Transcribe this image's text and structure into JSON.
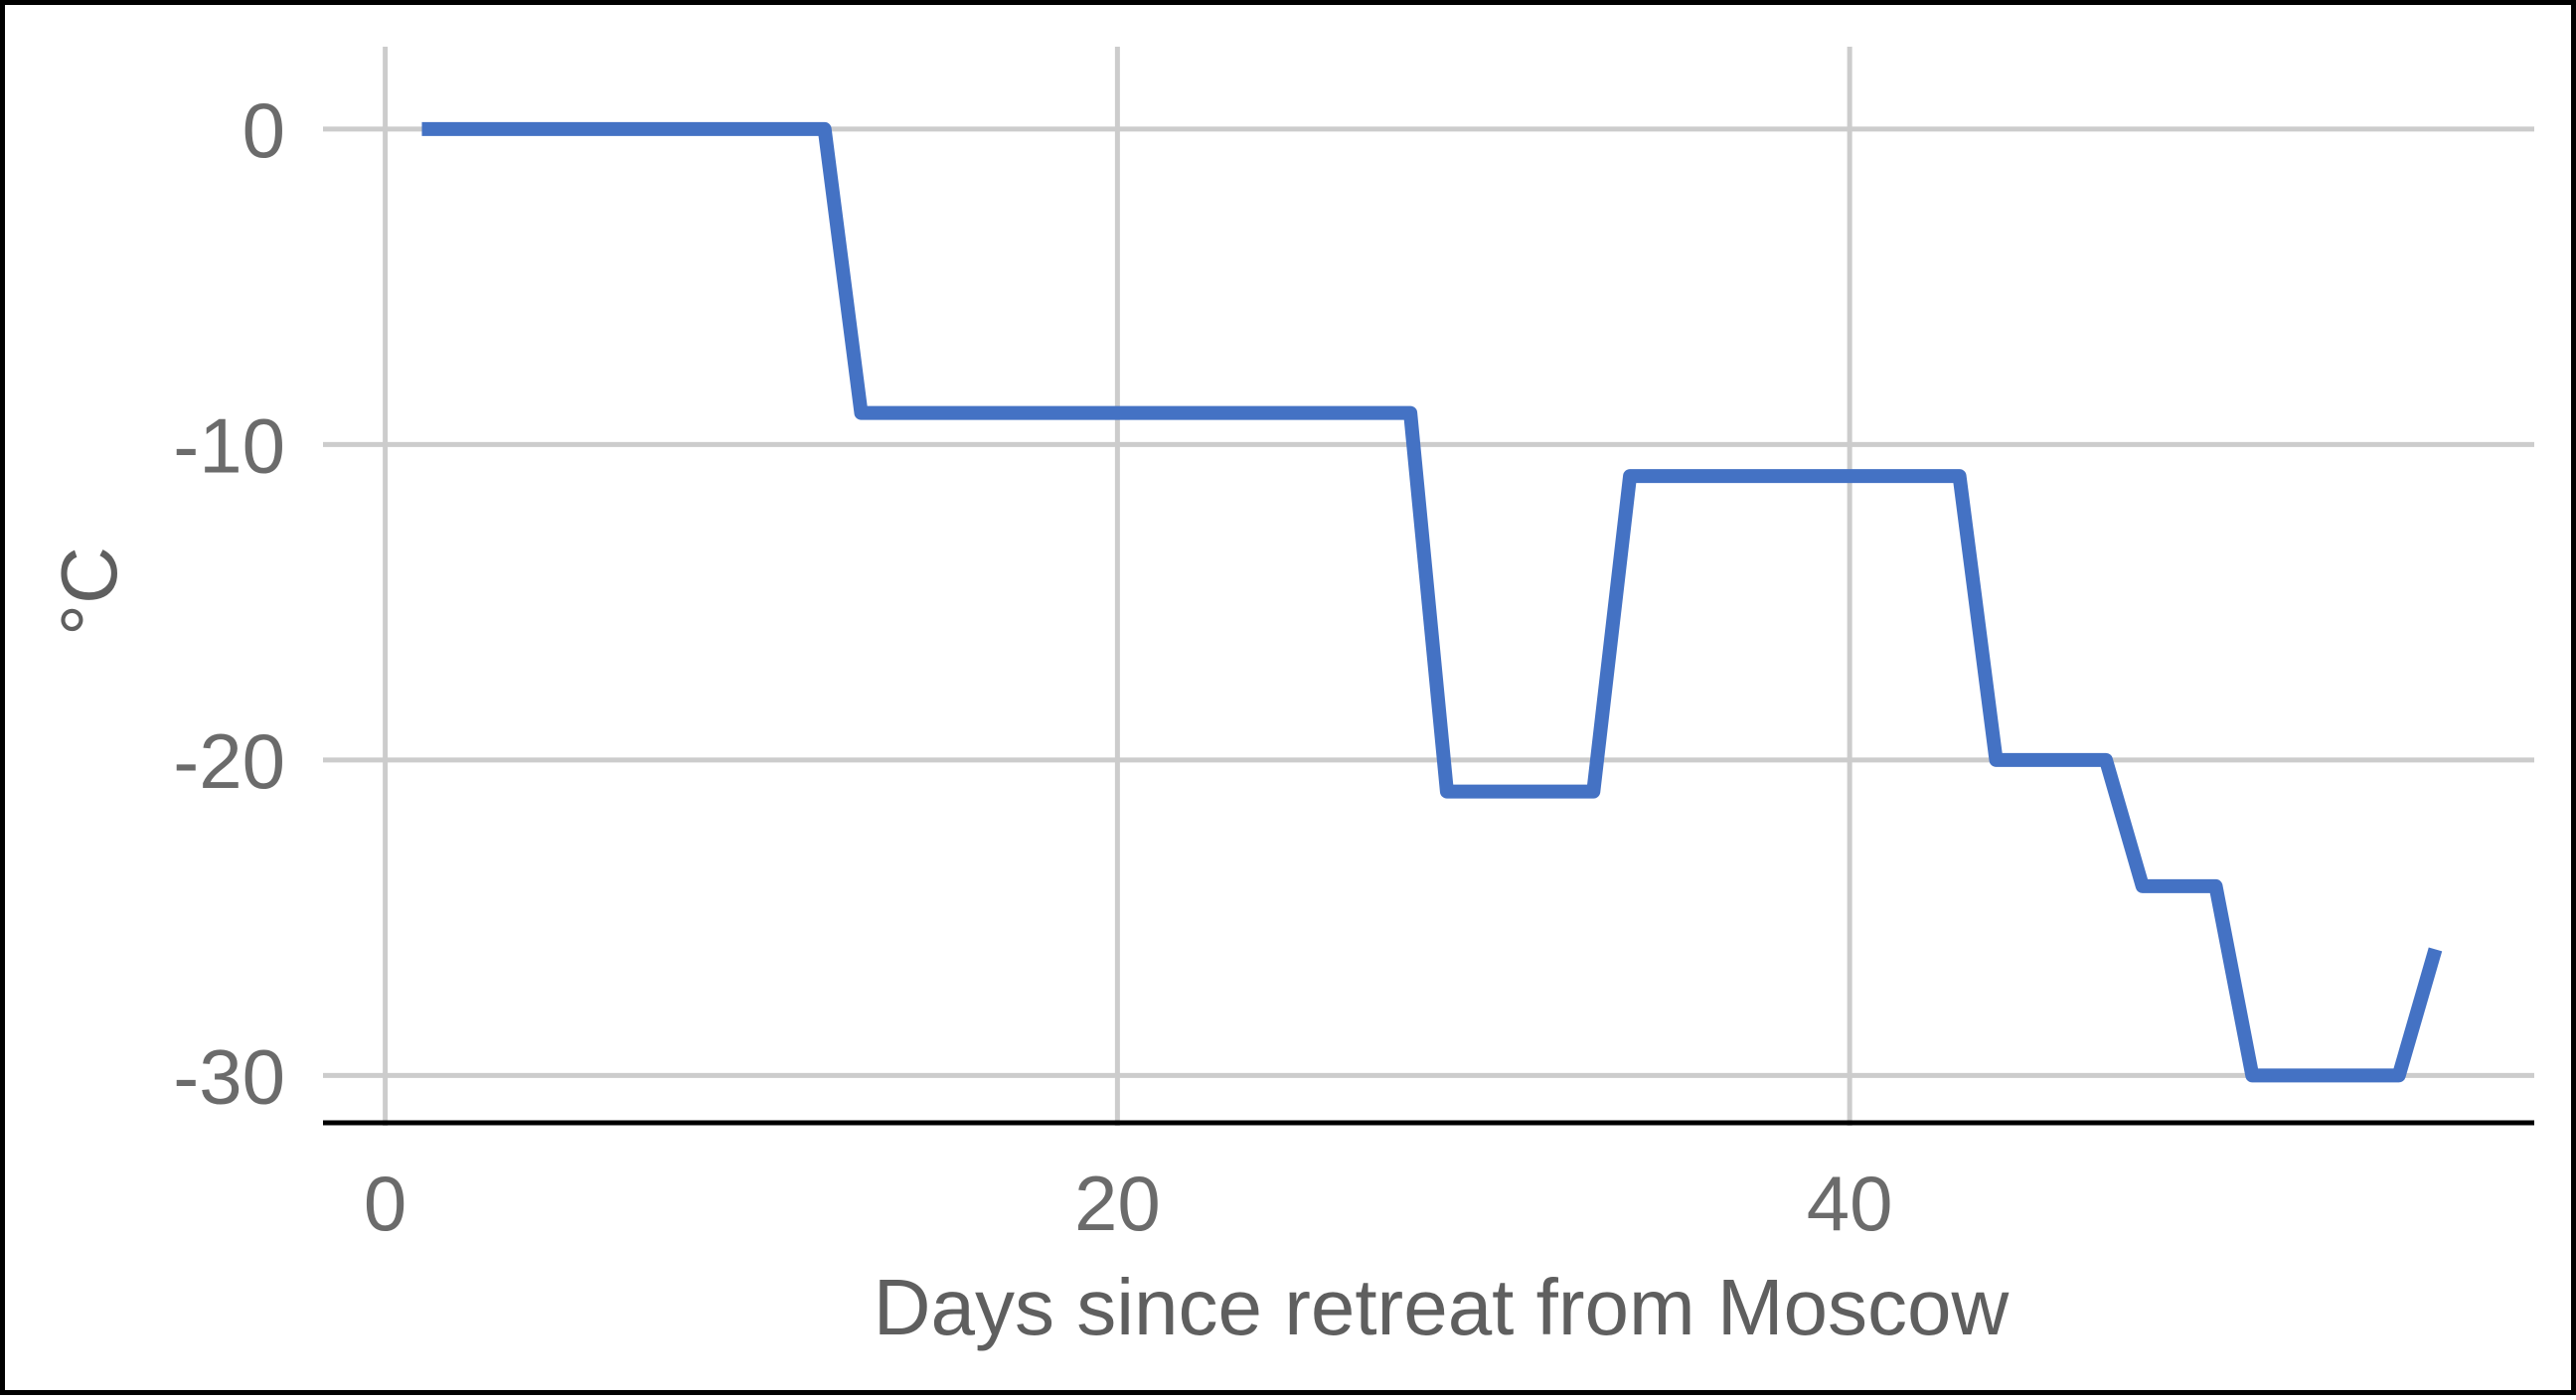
{
  "chart_data": {
    "type": "line",
    "title": "",
    "xlabel": "Days since retreat from Moscow",
    "ylabel": "°C",
    "xlim": [
      -1.7,
      58.7
    ],
    "ylim": [
      -31.5,
      2.2
    ],
    "x_ticks": [
      0,
      20,
      40
    ],
    "y_ticks": [
      0,
      -10,
      -20,
      -30
    ],
    "grid": true,
    "legend": "none",
    "series": [
      {
        "color": "#4472c4",
        "points": [
          {
            "x": 1,
            "y": 0
          },
          {
            "x": 12,
            "y": 0
          },
          {
            "x": 13,
            "y": -9
          },
          {
            "x": 28,
            "y": -9
          },
          {
            "x": 29,
            "y": -21
          },
          {
            "x": 33,
            "y": -21
          },
          {
            "x": 34,
            "y": -11
          },
          {
            "x": 43,
            "y": -11
          },
          {
            "x": 44,
            "y": -20
          },
          {
            "x": 47,
            "y": -20
          },
          {
            "x": 48,
            "y": -24
          },
          {
            "x": 50,
            "y": -24
          },
          {
            "x": 51,
            "y": -30
          },
          {
            "x": 55,
            "y": -30
          },
          {
            "x": 56,
            "y": -26
          }
        ]
      }
    ],
    "colors": {
      "grid": "#cccccc",
      "axis": "#000000",
      "tick_text": "#6b6b6b",
      "title_text": "#5f5f5f"
    }
  }
}
